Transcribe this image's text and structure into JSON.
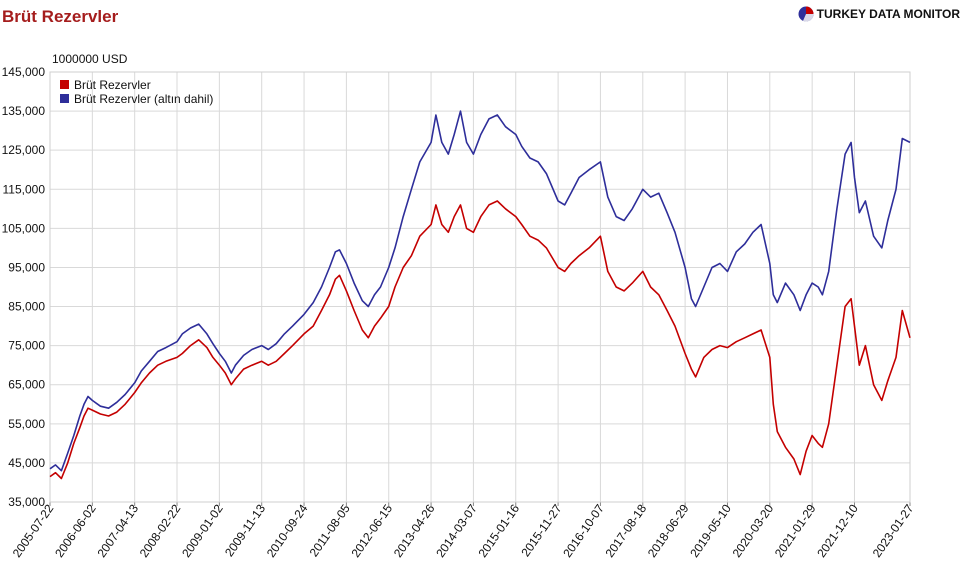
{
  "header": {
    "title": "Brüt Rezervler",
    "brand": "TURKEY DATA MONITOR",
    "unit": "1000000 USD"
  },
  "colors": {
    "series_1": "#c40000",
    "series_2": "#2e2e9a",
    "title": "#a51d1d"
  },
  "chart_data": {
    "type": "line",
    "title": "Brüt Rezervler",
    "ylabel": "1000000 USD",
    "xlabel": "",
    "ylim": [
      35000,
      145000
    ],
    "yticks": [
      35000,
      45000,
      55000,
      65000,
      75000,
      85000,
      95000,
      105000,
      115000,
      125000,
      135000,
      145000
    ],
    "ytick_labels": [
      "35,000",
      "45,000",
      "55,000",
      "65,000",
      "75,000",
      "85,000",
      "95,000",
      "105,000",
      "115,000",
      "125,000",
      "135,000",
      "145,000"
    ],
    "xlim": [
      "2005-07-22",
      "2023-01-27"
    ],
    "xtick_labels": [
      "2005-07-22",
      "2006-06-02",
      "2007-04-13",
      "2008-02-22",
      "2009-01-02",
      "2009-11-13",
      "2010-09-24",
      "2011-08-05",
      "2012-06-15",
      "2013-04-26",
      "2014-03-07",
      "2015-01-16",
      "2015-11-27",
      "2016-10-07",
      "2017-08-18",
      "2018-06-29",
      "2019-05-10",
      "2020-03-20",
      "2021-01-29",
      "2021-12-10",
      "2023-01-27"
    ],
    "grid": true,
    "legend_position": "top-left",
    "series": [
      {
        "name": "Brüt Rezervler",
        "color": "#c40000",
        "points": [
          [
            "2005-07-22",
            41500
          ],
          [
            "2005-09-01",
            42500
          ],
          [
            "2005-10-15",
            41000
          ],
          [
            "2005-12-01",
            45000
          ],
          [
            "2006-01-15",
            50000
          ],
          [
            "2006-03-01",
            54000
          ],
          [
            "2006-04-01",
            57000
          ],
          [
            "2006-05-01",
            59000
          ],
          [
            "2006-06-02",
            58500
          ],
          [
            "2006-08-01",
            57500
          ],
          [
            "2006-10-01",
            57000
          ],
          [
            "2006-12-01",
            58000
          ],
          [
            "2007-02-01",
            60000
          ],
          [
            "2007-04-13",
            63000
          ],
          [
            "2007-06-01",
            65500
          ],
          [
            "2007-08-01",
            68000
          ],
          [
            "2007-10-01",
            70000
          ],
          [
            "2007-12-01",
            71000
          ],
          [
            "2008-02-22",
            72000
          ],
          [
            "2008-04-01",
            73000
          ],
          [
            "2008-06-01",
            75000
          ],
          [
            "2008-08-01",
            76500
          ],
          [
            "2008-10-01",
            74500
          ],
          [
            "2008-11-15",
            72000
          ],
          [
            "2009-01-02",
            70000
          ],
          [
            "2009-02-15",
            68000
          ],
          [
            "2009-04-01",
            65000
          ],
          [
            "2009-05-01",
            66500
          ],
          [
            "2009-07-01",
            69000
          ],
          [
            "2009-09-01",
            70000
          ],
          [
            "2009-11-13",
            71000
          ],
          [
            "2010-01-01",
            70000
          ],
          [
            "2010-03-01",
            71000
          ],
          [
            "2010-05-01",
            73000
          ],
          [
            "2010-07-01",
            75000
          ],
          [
            "2010-09-24",
            78000
          ],
          [
            "2010-12-01",
            80000
          ],
          [
            "2011-02-01",
            84000
          ],
          [
            "2011-04-01",
            88000
          ],
          [
            "2011-05-15",
            92000
          ],
          [
            "2011-06-15",
            93000
          ],
          [
            "2011-08-05",
            89000
          ],
          [
            "2011-10-01",
            84000
          ],
          [
            "2011-12-01",
            79000
          ],
          [
            "2012-01-15",
            77000
          ],
          [
            "2012-03-01",
            80000
          ],
          [
            "2012-04-15",
            82000
          ],
          [
            "2012-06-15",
            85000
          ],
          [
            "2012-08-01",
            90000
          ],
          [
            "2012-10-01",
            95000
          ],
          [
            "2012-12-01",
            98000
          ],
          [
            "2013-02-01",
            103000
          ],
          [
            "2013-04-26",
            106000
          ],
          [
            "2013-06-01",
            111000
          ],
          [
            "2013-07-15",
            106000
          ],
          [
            "2013-09-01",
            104000
          ],
          [
            "2013-10-15",
            108000
          ],
          [
            "2013-12-01",
            111000
          ],
          [
            "2014-01-15",
            105000
          ],
          [
            "2014-03-07",
            104000
          ],
          [
            "2014-05-01",
            108000
          ],
          [
            "2014-07-01",
            111000
          ],
          [
            "2014-09-01",
            112000
          ],
          [
            "2014-11-01",
            110000
          ],
          [
            "2015-01-16",
            108000
          ],
          [
            "2015-03-01",
            106000
          ],
          [
            "2015-05-01",
            103000
          ],
          [
            "2015-07-01",
            102000
          ],
          [
            "2015-09-01",
            100000
          ],
          [
            "2015-11-27",
            95000
          ],
          [
            "2016-01-15",
            94000
          ],
          [
            "2016-03-01",
            96000
          ],
          [
            "2016-05-01",
            98000
          ],
          [
            "2016-07-15",
            100000
          ],
          [
            "2016-10-07",
            103000
          ],
          [
            "2016-12-01",
            94000
          ],
          [
            "2017-02-01",
            90000
          ],
          [
            "2017-04-01",
            89000
          ],
          [
            "2017-06-01",
            91000
          ],
          [
            "2017-08-18",
            94000
          ],
          [
            "2017-10-15",
            90000
          ],
          [
            "2017-12-15",
            88000
          ],
          [
            "2018-02-15",
            84000
          ],
          [
            "2018-04-15",
            80000
          ],
          [
            "2018-06-29",
            73000
          ],
          [
            "2018-08-15",
            69000
          ],
          [
            "2018-09-15",
            67000
          ],
          [
            "2018-11-15",
            72000
          ],
          [
            "2019-01-15",
            74000
          ],
          [
            "2019-03-15",
            75000
          ],
          [
            "2019-05-10",
            74500
          ],
          [
            "2019-07-15",
            76000
          ],
          [
            "2019-09-15",
            77000
          ],
          [
            "2019-11-15",
            78000
          ],
          [
            "2020-01-15",
            79000
          ],
          [
            "2020-03-20",
            72000
          ],
          [
            "2020-04-15",
            60000
          ],
          [
            "2020-05-15",
            53000
          ],
          [
            "2020-07-15",
            49000
          ],
          [
            "2020-09-15",
            46000
          ],
          [
            "2020-11-01",
            42000
          ],
          [
            "2020-12-15",
            48000
          ],
          [
            "2021-01-29",
            52000
          ],
          [
            "2021-03-15",
            50000
          ],
          [
            "2021-04-15",
            49000
          ],
          [
            "2021-06-01",
            55000
          ],
          [
            "2021-08-01",
            70000
          ],
          [
            "2021-10-01",
            85000
          ],
          [
            "2021-11-15",
            87000
          ],
          [
            "2021-12-10",
            80000
          ],
          [
            "2022-01-15",
            70000
          ],
          [
            "2022-03-01",
            75000
          ],
          [
            "2022-05-01",
            65000
          ],
          [
            "2022-07-01",
            61000
          ],
          [
            "2022-08-15",
            66000
          ],
          [
            "2022-10-15",
            72000
          ],
          [
            "2022-12-01",
            84000
          ],
          [
            "2023-01-27",
            77000
          ]
        ]
      },
      {
        "name": "Brüt Rezervler (altın dahil)",
        "color": "#2e2e9a",
        "points": [
          [
            "2005-07-22",
            43500
          ],
          [
            "2005-09-01",
            44500
          ],
          [
            "2005-10-15",
            43000
          ],
          [
            "2005-12-01",
            47500
          ],
          [
            "2006-01-15",
            52000
          ],
          [
            "2006-03-01",
            57000
          ],
          [
            "2006-04-01",
            60000
          ],
          [
            "2006-05-01",
            62000
          ],
          [
            "2006-06-02",
            61000
          ],
          [
            "2006-08-01",
            59500
          ],
          [
            "2006-10-01",
            59000
          ],
          [
            "2006-12-01",
            60500
          ],
          [
            "2007-02-01",
            62500
          ],
          [
            "2007-04-13",
            65500
          ],
          [
            "2007-06-01",
            68500
          ],
          [
            "2007-08-01",
            71000
          ],
          [
            "2007-10-01",
            73500
          ],
          [
            "2007-12-01",
            74500
          ],
          [
            "2008-02-22",
            76000
          ],
          [
            "2008-04-01",
            78000
          ],
          [
            "2008-06-01",
            79500
          ],
          [
            "2008-08-01",
            80500
          ],
          [
            "2008-10-01",
            78000
          ],
          [
            "2008-11-15",
            75500
          ],
          [
            "2009-01-02",
            73000
          ],
          [
            "2009-02-15",
            71000
          ],
          [
            "2009-04-01",
            68000
          ],
          [
            "2009-05-01",
            70000
          ],
          [
            "2009-07-01",
            72500
          ],
          [
            "2009-09-01",
            74000
          ],
          [
            "2009-11-13",
            75000
          ],
          [
            "2010-01-01",
            74000
          ],
          [
            "2010-03-01",
            75500
          ],
          [
            "2010-05-01",
            78000
          ],
          [
            "2010-07-01",
            80000
          ],
          [
            "2010-09-24",
            83000
          ],
          [
            "2010-12-01",
            86000
          ],
          [
            "2011-02-01",
            90000
          ],
          [
            "2011-04-01",
            95000
          ],
          [
            "2011-05-15",
            99000
          ],
          [
            "2011-06-15",
            99500
          ],
          [
            "2011-08-05",
            96000
          ],
          [
            "2011-10-01",
            91000
          ],
          [
            "2011-12-01",
            86500
          ],
          [
            "2012-01-15",
            85000
          ],
          [
            "2012-03-01",
            88000
          ],
          [
            "2012-04-15",
            90000
          ],
          [
            "2012-06-15",
            95000
          ],
          [
            "2012-08-01",
            100000
          ],
          [
            "2012-10-01",
            108000
          ],
          [
            "2012-12-01",
            115000
          ],
          [
            "2013-02-01",
            122000
          ],
          [
            "2013-04-26",
            127000
          ],
          [
            "2013-06-01",
            134000
          ],
          [
            "2013-07-15",
            127000
          ],
          [
            "2013-09-01",
            124000
          ],
          [
            "2013-10-15",
            129000
          ],
          [
            "2013-12-01",
            135000
          ],
          [
            "2014-01-15",
            127000
          ],
          [
            "2014-03-07",
            124000
          ],
          [
            "2014-05-01",
            129000
          ],
          [
            "2014-07-01",
            133000
          ],
          [
            "2014-09-01",
            134000
          ],
          [
            "2014-11-01",
            131000
          ],
          [
            "2015-01-16",
            129000
          ],
          [
            "2015-03-01",
            126000
          ],
          [
            "2015-05-01",
            123000
          ],
          [
            "2015-07-01",
            122000
          ],
          [
            "2015-09-01",
            119000
          ],
          [
            "2015-11-27",
            112000
          ],
          [
            "2016-01-15",
            111000
          ],
          [
            "2016-03-01",
            114000
          ],
          [
            "2016-05-01",
            118000
          ],
          [
            "2016-07-15",
            120000
          ],
          [
            "2016-10-07",
            122000
          ],
          [
            "2016-12-01",
            113000
          ],
          [
            "2017-02-01",
            108000
          ],
          [
            "2017-04-01",
            107000
          ],
          [
            "2017-06-01",
            110000
          ],
          [
            "2017-08-18",
            115000
          ],
          [
            "2017-10-15",
            113000
          ],
          [
            "2017-12-15",
            114000
          ],
          [
            "2018-02-15",
            109000
          ],
          [
            "2018-04-15",
            104000
          ],
          [
            "2018-06-29",
            95000
          ],
          [
            "2018-08-15",
            87000
          ],
          [
            "2018-09-15",
            85000
          ],
          [
            "2018-11-15",
            90000
          ],
          [
            "2019-01-15",
            95000
          ],
          [
            "2019-03-15",
            96000
          ],
          [
            "2019-05-10",
            94000
          ],
          [
            "2019-07-15",
            99000
          ],
          [
            "2019-09-15",
            101000
          ],
          [
            "2019-11-15",
            104000
          ],
          [
            "2020-01-15",
            106000
          ],
          [
            "2020-03-20",
            96000
          ],
          [
            "2020-04-15",
            88000
          ],
          [
            "2020-05-15",
            86000
          ],
          [
            "2020-07-15",
            91000
          ],
          [
            "2020-09-15",
            88000
          ],
          [
            "2020-11-01",
            84000
          ],
          [
            "2020-12-15",
            88000
          ],
          [
            "2021-01-29",
            91000
          ],
          [
            "2021-03-15",
            90000
          ],
          [
            "2021-04-15",
            88000
          ],
          [
            "2021-06-01",
            94000
          ],
          [
            "2021-08-01",
            110000
          ],
          [
            "2021-10-01",
            124000
          ],
          [
            "2021-11-15",
            127000
          ],
          [
            "2021-12-10",
            118000
          ],
          [
            "2022-01-15",
            109000
          ],
          [
            "2022-03-01",
            112000
          ],
          [
            "2022-05-01",
            103000
          ],
          [
            "2022-07-01",
            100000
          ],
          [
            "2022-08-15",
            107000
          ],
          [
            "2022-10-15",
            115000
          ],
          [
            "2022-12-01",
            128000
          ],
          [
            "2023-01-27",
            127000
          ]
        ]
      }
    ]
  }
}
